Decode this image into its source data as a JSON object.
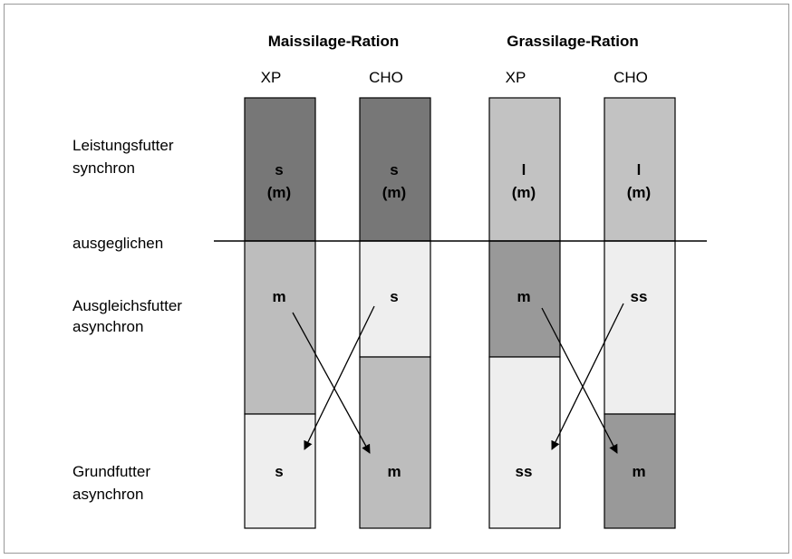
{
  "groups": [
    "Maissilage-Ration",
    "Grassilage-Ration"
  ],
  "columns": [
    {
      "label": "XP",
      "cells": [
        [
          "s",
          "(m)"
        ],
        [
          "m"
        ],
        [
          "s"
        ]
      ]
    },
    {
      "label": "CHO",
      "cells": [
        [
          "s",
          "(m)"
        ],
        [
          "s"
        ],
        [
          "m"
        ]
      ]
    },
    {
      "label": "XP",
      "cells": [
        [
          "l",
          "(m)"
        ],
        [
          "m"
        ],
        [
          "ss"
        ]
      ]
    },
    {
      "label": "CHO",
      "cells": [
        [
          "l",
          "(m)"
        ],
        [
          "ss"
        ],
        [
          "m"
        ]
      ]
    }
  ],
  "rows": [
    [
      "Leistungsfutter",
      "synchron"
    ],
    [
      "ausgeglichen"
    ],
    [
      "Ausgleichsfutter",
      "asynchron"
    ],
    [
      "Grundfutter",
      "asynchron"
    ]
  ]
}
